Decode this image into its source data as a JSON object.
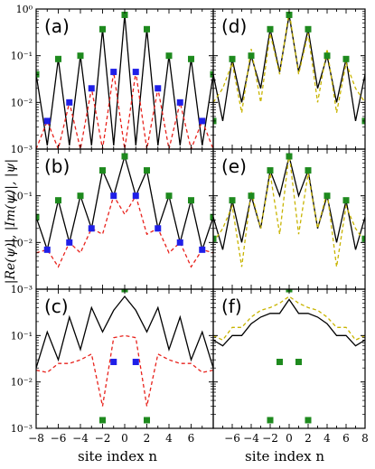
{
  "figure": {
    "ylabel": "|Re(ψ)|, |Im(ψ)|, |ψ|",
    "xlabel_left": "site index n",
    "xlabel_right": "site index n"
  },
  "colors": {
    "black": "#000000",
    "red": "#e8221c",
    "yellow": "#c8b400",
    "green": "#1e8a1e",
    "blue": "#1f1fe8"
  },
  "chart_data": [
    {
      "panel": "(a)",
      "type": "line",
      "yscale": "log",
      "xlim": [
        -8,
        8
      ],
      "ylim": [
        0.001,
        1
      ],
      "x": [
        -8,
        -7,
        -6,
        -5,
        -4,
        -3,
        -2,
        -1,
        0,
        1,
        2,
        3,
        4,
        5,
        6,
        7,
        8
      ],
      "series": [
        {
          "style": "solid-black",
          "values": [
            0.04,
            0.0012,
            0.085,
            0.0012,
            0.1,
            0.0012,
            0.37,
            0.0012,
            0.75,
            0.0012,
            0.37,
            0.0012,
            0.1,
            0.0012,
            0.085,
            0.0012,
            0.04
          ]
        },
        {
          "style": "dashed-red",
          "values": [
            0.001,
            0.004,
            0.001,
            0.01,
            0.001,
            0.02,
            0.001,
            0.045,
            0.001,
            0.045,
            0.001,
            0.02,
            0.001,
            0.01,
            0.001,
            0.004,
            0.001
          ]
        }
      ],
      "markers_green": [
        [
          -8,
          0.04
        ],
        [
          -6,
          0.085
        ],
        [
          -4,
          0.1
        ],
        [
          -2,
          0.37
        ],
        [
          0,
          0.75
        ],
        [
          2,
          0.37
        ],
        [
          4,
          0.1
        ],
        [
          6,
          0.085
        ],
        [
          8,
          0.04
        ]
      ],
      "markers_blue": [
        [
          -7,
          0.004
        ],
        [
          -5,
          0.01
        ],
        [
          -3,
          0.02
        ],
        [
          -1,
          0.045
        ],
        [
          1,
          0.045
        ],
        [
          3,
          0.02
        ],
        [
          5,
          0.01
        ],
        [
          7,
          0.004
        ]
      ]
    },
    {
      "panel": "(b)",
      "type": "line",
      "yscale": "log",
      "xlim": [
        -8,
        8
      ],
      "ylim": [
        0.001,
        1
      ],
      "x": [
        -8,
        -7,
        -6,
        -5,
        -4,
        -3,
        -2,
        -1,
        0,
        1,
        2,
        3,
        4,
        5,
        6,
        7,
        8
      ],
      "series": [
        {
          "style": "solid-black",
          "values": [
            0.035,
            0.007,
            0.08,
            0.01,
            0.1,
            0.02,
            0.35,
            0.1,
            0.7,
            0.1,
            0.35,
            0.02,
            0.1,
            0.01,
            0.08,
            0.007,
            0.035
          ]
        },
        {
          "style": "dashed-red",
          "values": [
            0.006,
            0.007,
            0.003,
            0.01,
            0.006,
            0.02,
            0.015,
            0.1,
            0.04,
            0.1,
            0.015,
            0.02,
            0.006,
            0.01,
            0.003,
            0.007,
            0.006
          ]
        }
      ],
      "markers_green": [
        [
          -8,
          0.035
        ],
        [
          -6,
          0.08
        ],
        [
          -4,
          0.1
        ],
        [
          -2,
          0.35
        ],
        [
          0,
          0.7
        ],
        [
          2,
          0.35
        ],
        [
          4,
          0.1
        ],
        [
          6,
          0.08
        ],
        [
          8,
          0.035
        ]
      ],
      "markers_blue": [
        [
          -7,
          0.007
        ],
        [
          -5,
          0.01
        ],
        [
          -3,
          0.02
        ],
        [
          -1,
          0.1
        ],
        [
          1,
          0.1
        ],
        [
          3,
          0.02
        ],
        [
          5,
          0.01
        ],
        [
          7,
          0.007
        ]
      ]
    },
    {
      "panel": "(c)",
      "type": "line",
      "yscale": "log",
      "xlim": [
        -8,
        8
      ],
      "ylim": [
        0.001,
        1
      ],
      "x": [
        -8,
        -7,
        -6,
        -5,
        -4,
        -3,
        -2,
        -1,
        0,
        1,
        2,
        3,
        4,
        5,
        6,
        7,
        8
      ],
      "series": [
        {
          "style": "solid-black",
          "values": [
            0.02,
            0.12,
            0.03,
            0.25,
            0.05,
            0.4,
            0.12,
            0.35,
            0.7,
            0.35,
            0.12,
            0.4,
            0.05,
            0.25,
            0.03,
            0.12,
            0.02
          ]
        },
        {
          "style": "dashed-red",
          "values": [
            0.018,
            0.016,
            0.025,
            0.025,
            0.03,
            0.04,
            0.003,
            0.09,
            0.1,
            0.09,
            0.003,
            0.04,
            0.03,
            0.025,
            0.025,
            0.016,
            0.018
          ]
        }
      ],
      "markers_green": [
        [
          -2,
          0.0015
        ],
        [
          0,
          1.0
        ],
        [
          2,
          0.0015
        ]
      ],
      "markers_blue": [
        [
          -1,
          0.027
        ],
        [
          1,
          0.027
        ]
      ]
    },
    {
      "panel": "(d)",
      "type": "line",
      "yscale": "log",
      "xlim": [
        -8,
        8
      ],
      "ylim": [
        0.001,
        1
      ],
      "x": [
        -8,
        -7,
        -6,
        -5,
        -4,
        -3,
        -2,
        -1,
        0,
        1,
        2,
        3,
        4,
        5,
        6,
        7,
        8
      ],
      "series": [
        {
          "style": "solid-black",
          "values": [
            0.04,
            0.004,
            0.085,
            0.01,
            0.1,
            0.02,
            0.37,
            0.045,
            0.75,
            0.045,
            0.37,
            0.02,
            0.1,
            0.01,
            0.085,
            0.004,
            0.04
          ]
        },
        {
          "style": "dashed-yellow",
          "values": [
            0.01,
            0.02,
            0.07,
            0.006,
            0.14,
            0.01,
            0.3,
            0.04,
            0.9,
            0.04,
            0.3,
            0.01,
            0.14,
            0.006,
            0.07,
            0.02,
            0.01
          ]
        }
      ],
      "markers_green": [
        [
          -8,
          0.004
        ],
        [
          -6,
          0.085
        ],
        [
          -4,
          0.1
        ],
        [
          -2,
          0.37
        ],
        [
          0,
          0.75
        ],
        [
          2,
          0.37
        ],
        [
          4,
          0.1
        ],
        [
          6,
          0.085
        ],
        [
          8,
          0.004
        ]
      ],
      "markers_blue": []
    },
    {
      "panel": "(e)",
      "type": "line",
      "yscale": "log",
      "xlim": [
        -8,
        8
      ],
      "ylim": [
        0.001,
        1
      ],
      "x": [
        -8,
        -7,
        -6,
        -5,
        -4,
        -3,
        -2,
        -1,
        0,
        1,
        2,
        3,
        4,
        5,
        6,
        7,
        8
      ],
      "series": [
        {
          "style": "solid-black",
          "values": [
            0.035,
            0.007,
            0.08,
            0.01,
            0.1,
            0.02,
            0.35,
            0.1,
            0.7,
            0.1,
            0.35,
            0.02,
            0.1,
            0.01,
            0.08,
            0.007,
            0.035
          ]
        },
        {
          "style": "dashed-yellow",
          "values": [
            0.01,
            0.02,
            0.06,
            0.003,
            0.12,
            0.02,
            0.3,
            0.015,
            0.8,
            0.015,
            0.3,
            0.02,
            0.12,
            0.003,
            0.06,
            0.02,
            0.01
          ]
        }
      ],
      "markers_green": [
        [
          -8,
          0.012
        ],
        [
          -6,
          0.08
        ],
        [
          -4,
          0.1
        ],
        [
          -2,
          0.35
        ],
        [
          0,
          0.7
        ],
        [
          2,
          0.35
        ],
        [
          4,
          0.1
        ],
        [
          6,
          0.08
        ],
        [
          8,
          0.012
        ]
      ],
      "markers_blue": []
    },
    {
      "panel": "(f)",
      "type": "line",
      "yscale": "log",
      "xlim": [
        -8,
        8
      ],
      "ylim": [
        0.001,
        1
      ],
      "x": [
        -8,
        -7,
        -6,
        -5,
        -4,
        -3,
        -2,
        -1,
        0,
        1,
        2,
        3,
        4,
        5,
        6,
        7,
        8
      ],
      "series": [
        {
          "style": "solid-black",
          "values": [
            0.08,
            0.06,
            0.1,
            0.1,
            0.18,
            0.25,
            0.3,
            0.3,
            0.6,
            0.3,
            0.3,
            0.25,
            0.18,
            0.1,
            0.1,
            0.06,
            0.08
          ]
        },
        {
          "style": "dashed-yellow",
          "values": [
            0.1,
            0.08,
            0.15,
            0.15,
            0.25,
            0.35,
            0.4,
            0.5,
            0.7,
            0.5,
            0.4,
            0.35,
            0.25,
            0.15,
            0.15,
            0.08,
            0.1
          ]
        }
      ],
      "markers_green": [
        [
          -2,
          0.0015
        ],
        [
          -1,
          0.027
        ],
        [
          0,
          1.0
        ],
        [
          1,
          0.027
        ],
        [
          2,
          0.0015
        ]
      ],
      "markers_blue": []
    }
  ],
  "ticks": {
    "y_labels": [
      "10⁰",
      "10⁻¹",
      "10⁻²",
      "10⁻³"
    ],
    "x_labels_left": [
      "−8",
      "−6",
      "−4",
      "−2",
      "0",
      "2",
      "4",
      "6"
    ],
    "x_labels_right": [
      "−6",
      "−4",
      "−2",
      "0",
      "2",
      "4",
      "6",
      "8"
    ]
  }
}
